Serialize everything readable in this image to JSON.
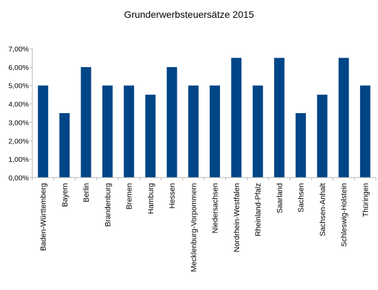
{
  "chart_data": {
    "type": "bar",
    "title": "Grunderwerbsteuersätze 2015",
    "xlabel": "",
    "ylabel": "",
    "ylim": [
      0,
      7
    ],
    "grid": false,
    "legend": "none",
    "bar_color": "#004586",
    "yticks": [
      "0,00%",
      "1,00%",
      "2,00%",
      "3,00%",
      "4,00%",
      "5,00%",
      "6,00%",
      "7,00%"
    ],
    "categories": [
      "Baden-Württemberg",
      "Bayern",
      "Berlin",
      "Brandenburg",
      "Bremen",
      "Hamburg",
      "Hessen",
      "Mecklenburg-Vorpommern",
      "Niedersachsen",
      "Nordrhein-Westfalen",
      "Rheinland-Pfalz",
      "Saarland",
      "Sachsen",
      "Sachsen-Anhalt",
      "Schleswig-Holstein",
      "Thüringen"
    ],
    "values": [
      5.0,
      3.5,
      6.0,
      5.0,
      5.0,
      4.5,
      6.0,
      5.0,
      5.0,
      6.5,
      5.0,
      6.5,
      3.5,
      4.5,
      6.5,
      5.0
    ]
  }
}
